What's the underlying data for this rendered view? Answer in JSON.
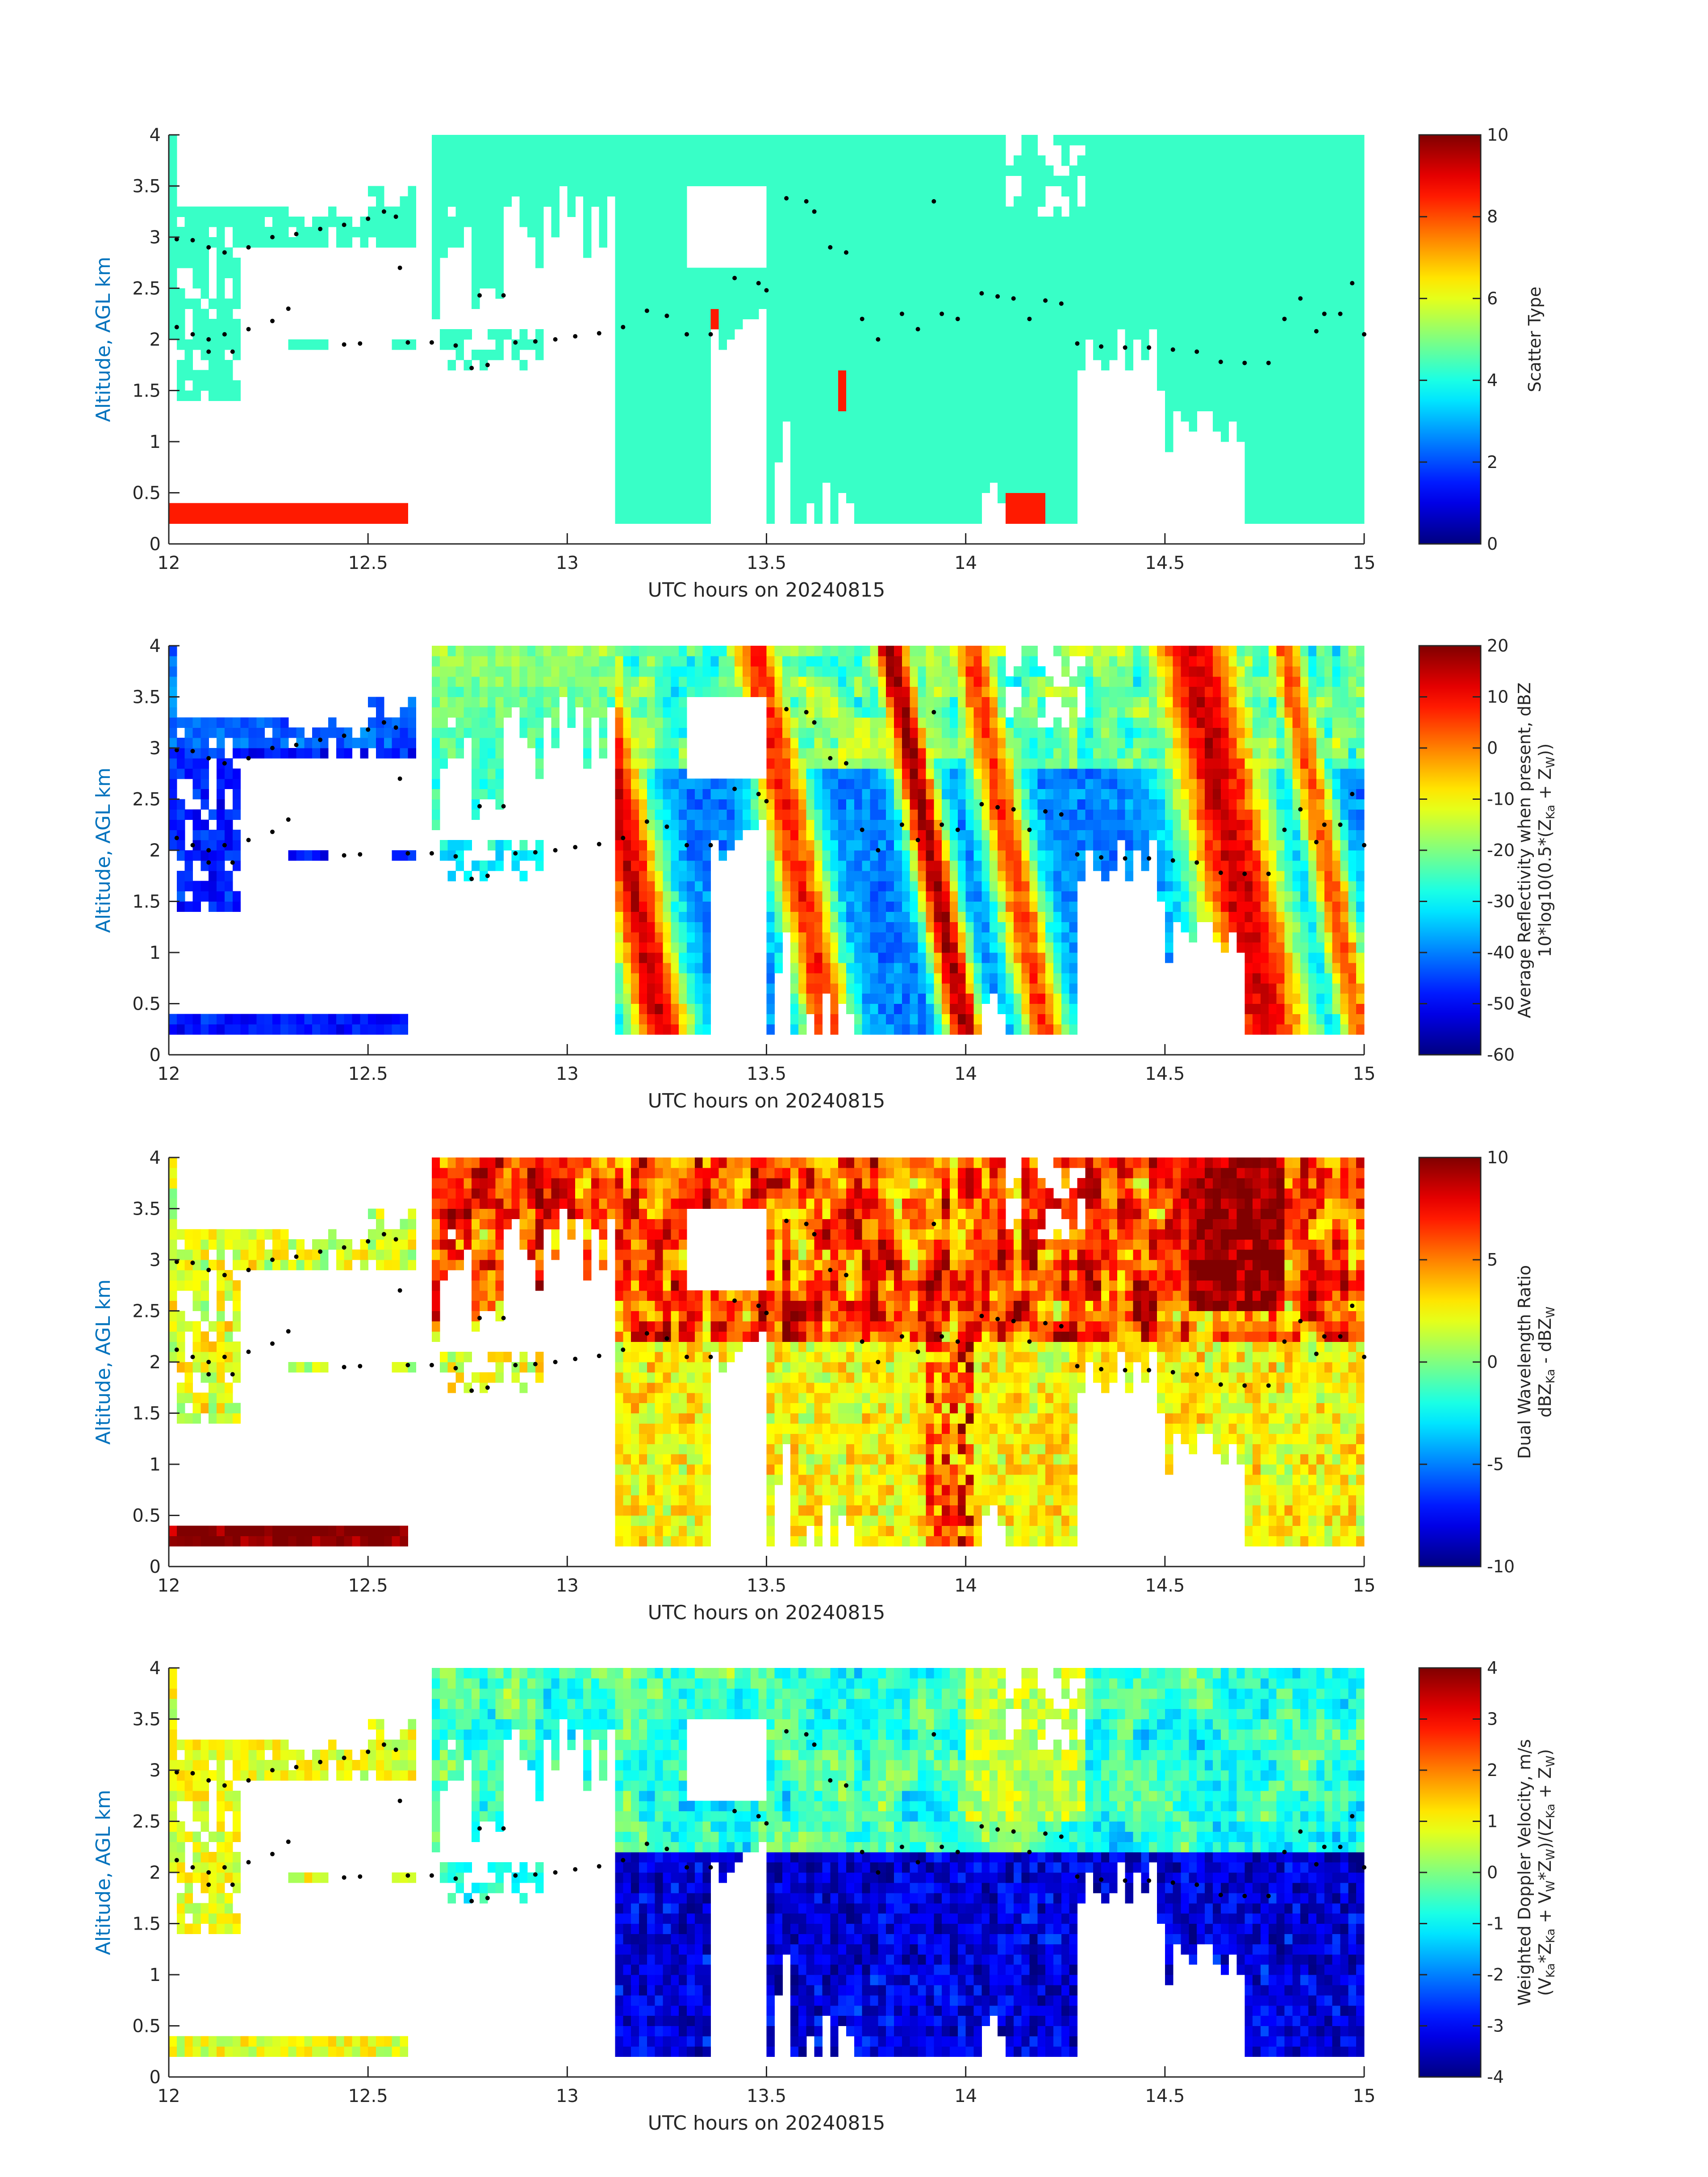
{
  "chart_data": [
    {
      "type": "heatmap",
      "xlabel": "UTC hours on 20240815",
      "ylabel": "Altitude, AGL km",
      "xlim": [
        12,
        15
      ],
      "ylim": [
        0,
        4
      ],
      "xticks": [
        "12",
        "12.5",
        "13",
        "13.5",
        "14",
        "14.5",
        "15"
      ],
      "yticks": [
        "0",
        "0.5",
        "1",
        "1.5",
        "2",
        "2.5",
        "3",
        "3.5",
        "4"
      ],
      "colorbar": {
        "lines": [
          "Scatter Type"
        ],
        "range": [
          0,
          10
        ],
        "ticks": [
          "0",
          "2",
          "4",
          "6",
          "8",
          "10"
        ],
        "colormap": "jet"
      },
      "field": "scatter",
      "grid": false
    },
    {
      "type": "heatmap",
      "xlabel": "UTC hours on 20240815",
      "ylabel": "Altitude, AGL km",
      "xlim": [
        12,
        15
      ],
      "ylim": [
        0,
        4
      ],
      "xticks": [
        "12",
        "12.5",
        "13",
        "13.5",
        "14",
        "14.5",
        "15"
      ],
      "yticks": [
        "0",
        "0.5",
        "1",
        "1.5",
        "2",
        "2.5",
        "3",
        "3.5",
        "4"
      ],
      "colorbar": {
        "lines": [
          "Average Reflectivity when present, dBZ",
          "10*log10(0.5*(Z_Ka + Z_W))"
        ],
        "range": [
          -60,
          20
        ],
        "ticks": [
          "-60",
          "-50",
          "-40",
          "-30",
          "-20",
          "-10",
          "0",
          "10",
          "20"
        ],
        "colormap": "jet"
      },
      "field": "reflectivity",
      "grid": false
    },
    {
      "type": "heatmap",
      "xlabel": "UTC hours on 20240815",
      "ylabel": "Altitude, AGL km",
      "xlim": [
        12,
        15
      ],
      "ylim": [
        0,
        4
      ],
      "xticks": [
        "12",
        "12.5",
        "13",
        "13.5",
        "14",
        "14.5",
        "15"
      ],
      "yticks": [
        "0",
        "0.5",
        "1",
        "1.5",
        "2",
        "2.5",
        "3",
        "3.5",
        "4"
      ],
      "colorbar": {
        "lines": [
          "Dual Wavelength Ratio",
          "dBZ_Ka - dBZ_W"
        ],
        "range": [
          -10,
          10
        ],
        "ticks": [
          "-10",
          "-5",
          "0",
          "5",
          "10"
        ],
        "colormap": "jet"
      },
      "field": "dwr",
      "grid": false
    },
    {
      "type": "heatmap",
      "xlabel": "UTC hours on 20240815",
      "ylabel": "Altitude, AGL km",
      "xlim": [
        12,
        15
      ],
      "ylim": [
        0,
        4
      ],
      "xticks": [
        "12",
        "12.5",
        "13",
        "13.5",
        "14",
        "14.5",
        "15"
      ],
      "yticks": [
        "0",
        "0.5",
        "1",
        "1.5",
        "2",
        "2.5",
        "3",
        "3.5",
        "4"
      ],
      "colorbar": {
        "lines": [
          "Weighted Doppler Velocity, m/s",
          "(V_Ka*Z_Ka + V_W*Z_W)/(Z_Ka + Z_W)"
        ],
        "range": [
          -4,
          4
        ],
        "ticks": [
          "-4",
          "-3",
          "-2",
          "-1",
          "0",
          "1",
          "2",
          "3",
          "4"
        ],
        "colormap": "jet"
      },
      "field": "velocity",
      "grid": false
    }
  ],
  "cloud_base_points": [
    [
      12.02,
      2.98
    ],
    [
      12.06,
      2.97
    ],
    [
      12.1,
      2.9
    ],
    [
      12.14,
      2.85
    ],
    [
      12.2,
      2.9
    ],
    [
      12.26,
      3.0
    ],
    [
      12.32,
      3.03
    ],
    [
      12.38,
      3.08
    ],
    [
      12.44,
      3.12
    ],
    [
      12.5,
      3.18
    ],
    [
      12.54,
      3.25
    ],
    [
      12.57,
      3.2
    ],
    [
      12.02,
      2.12
    ],
    [
      12.06,
      2.05
    ],
    [
      12.1,
      2.0
    ],
    [
      12.14,
      2.05
    ],
    [
      12.2,
      2.1
    ],
    [
      12.26,
      2.18
    ],
    [
      12.3,
      2.3
    ],
    [
      12.1,
      1.88
    ],
    [
      12.16,
      1.88
    ],
    [
      12.44,
      1.95
    ],
    [
      12.48,
      1.96
    ],
    [
      12.58,
      2.7
    ],
    [
      12.6,
      1.97
    ],
    [
      12.66,
      1.97
    ],
    [
      12.72,
      1.94
    ],
    [
      12.76,
      1.72
    ],
    [
      12.8,
      1.75
    ],
    [
      12.78,
      2.43
    ],
    [
      12.84,
      2.43
    ],
    [
      12.87,
      1.97
    ],
    [
      12.92,
      1.98
    ],
    [
      12.97,
      2.0
    ],
    [
      13.02,
      2.03
    ],
    [
      13.08,
      2.06
    ],
    [
      13.14,
      2.12
    ],
    [
      13.2,
      2.28
    ],
    [
      13.25,
      2.23
    ],
    [
      13.3,
      2.05
    ],
    [
      13.36,
      2.05
    ],
    [
      13.42,
      2.6
    ],
    [
      13.48,
      2.55
    ],
    [
      13.5,
      2.48
    ],
    [
      13.55,
      3.38
    ],
    [
      13.6,
      3.35
    ],
    [
      13.62,
      3.25
    ],
    [
      13.66,
      2.9
    ],
    [
      13.7,
      2.85
    ],
    [
      13.74,
      2.2
    ],
    [
      13.78,
      2.0
    ],
    [
      13.84,
      2.25
    ],
    [
      13.88,
      2.1
    ],
    [
      13.92,
      3.35
    ],
    [
      13.94,
      2.25
    ],
    [
      13.98,
      2.2
    ],
    [
      14.04,
      2.45
    ],
    [
      14.08,
      2.42
    ],
    [
      14.12,
      2.4
    ],
    [
      14.16,
      2.2
    ],
    [
      14.2,
      2.38
    ],
    [
      14.24,
      2.35
    ],
    [
      14.28,
      1.96
    ],
    [
      14.34,
      1.93
    ],
    [
      14.4,
      1.92
    ],
    [
      14.46,
      1.92
    ],
    [
      14.52,
      1.9
    ],
    [
      14.58,
      1.88
    ],
    [
      14.64,
      1.78
    ],
    [
      14.7,
      1.77
    ],
    [
      14.76,
      1.77
    ],
    [
      14.8,
      2.2
    ],
    [
      14.84,
      2.4
    ],
    [
      14.88,
      2.08
    ],
    [
      14.9,
      2.25
    ],
    [
      14.94,
      2.25
    ],
    [
      14.97,
      2.55
    ],
    [
      15.0,
      2.05
    ]
  ]
}
